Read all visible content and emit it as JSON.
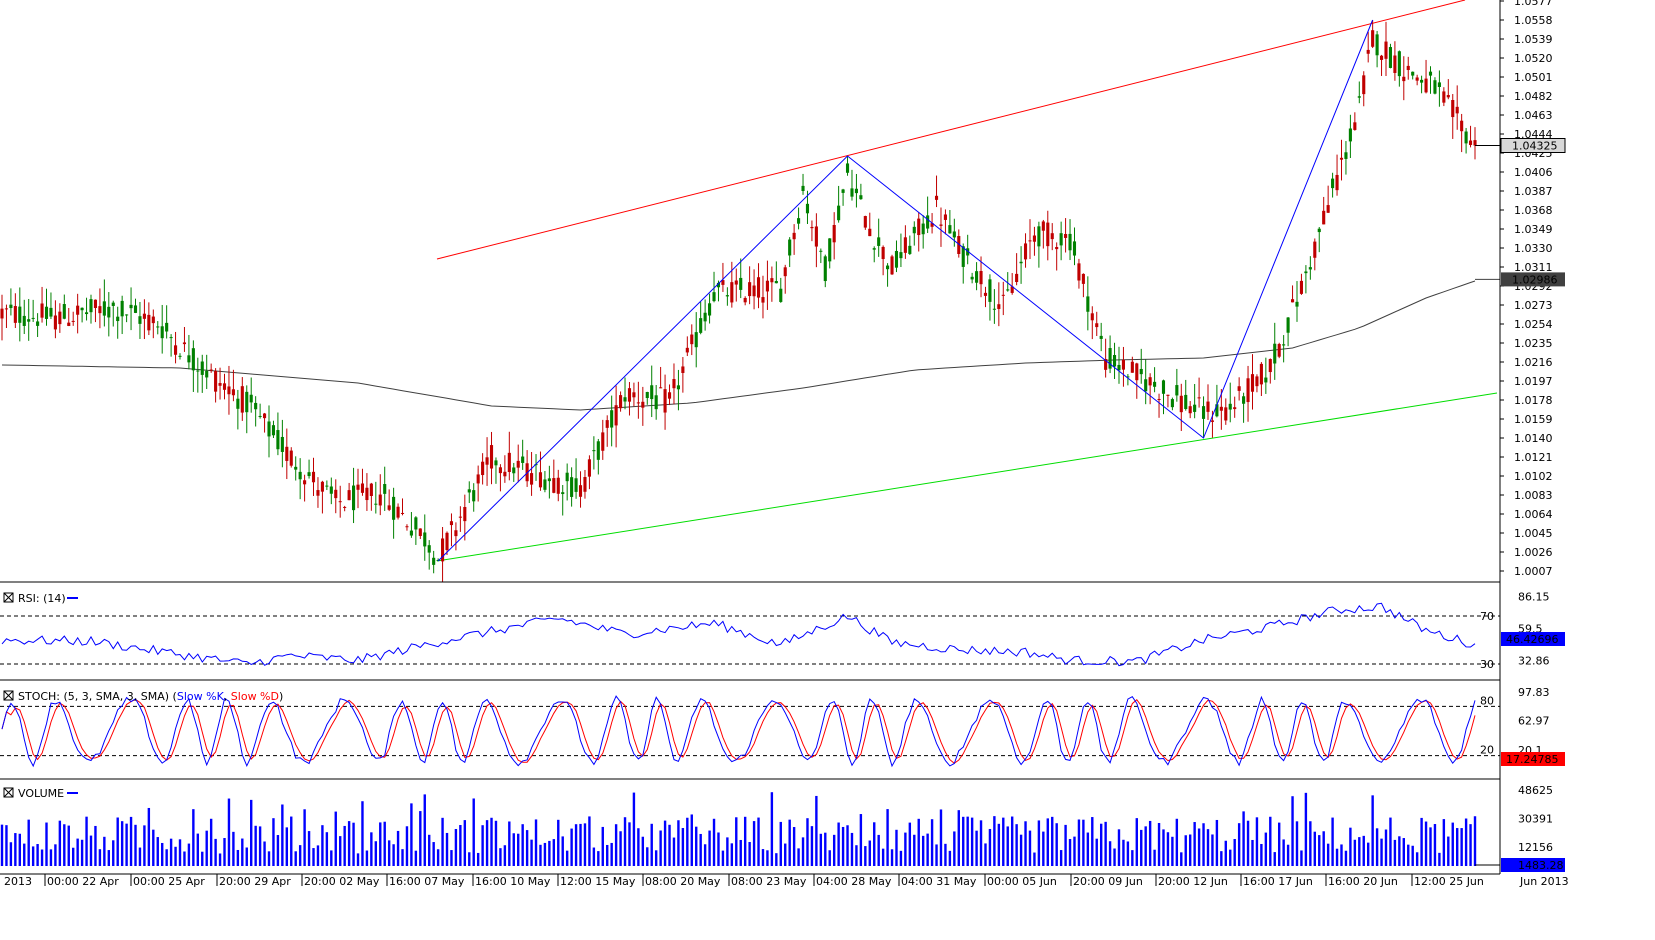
{
  "chart_data": [
    {
      "type": "candlestick",
      "panel": "price",
      "current_price_label": "1.04325",
      "ma_price_label": "1.02986",
      "colors": {
        "up": "#008000",
        "down": "#c00000",
        "ma": "#404040",
        "upper_channel": "#ff0000",
        "lower_channel": "#00dd00",
        "wave": "#0000ff",
        "axis": "#000000"
      },
      "ylim": [
        1.0007,
        1.0577
      ],
      "yticks": [
        "1.0577",
        "1.0558",
        "1.0539",
        "1.0520",
        "1.0501",
        "1.0482",
        "1.0463",
        "1.0444",
        "1.0425",
        "1.0406",
        "1.0387",
        "1.0368",
        "1.0349",
        "1.0330",
        "1.0311",
        "1.0292",
        "1.0273",
        "1.0254",
        "1.0235",
        "1.0216",
        "1.0197",
        "1.0178",
        "1.0159",
        "1.0140",
        "1.0121",
        "1.0102",
        "1.0083",
        "1.0064",
        "1.0045",
        "1.0026",
        "1.0007"
      ],
      "key_points": [
        {
          "label": "low 07 May",
          "x_index": 98,
          "price": 1.0017
        },
        {
          "label": "high 28 May",
          "x_index": 190,
          "price": 1.0422
        },
        {
          "label": "low 12 Jun",
          "x_index": 270,
          "price": 1.014
        },
        {
          "label": "high 21 Jun",
          "x_index": 308,
          "price": 1.0558
        },
        {
          "label": "last",
          "x_index": 331,
          "price": 1.04325
        }
      ]
    },
    {
      "type": "line",
      "panel": "rsi",
      "title": "RSI: (14)",
      "current_label": "46.42696",
      "yticks": [
        "86.15",
        "59.5",
        "32.86"
      ],
      "levels": [
        "70",
        "30"
      ],
      "ylim": [
        20,
        95
      ],
      "anchors": [
        [
          0,
          50
        ],
        [
          20,
          49
        ],
        [
          40,
          38
        ],
        [
          55,
          30
        ],
        [
          65,
          37
        ],
        [
          80,
          33
        ],
        [
          100,
          50
        ],
        [
          125,
          68
        ],
        [
          140,
          55
        ],
        [
          160,
          64
        ],
        [
          175,
          46
        ],
        [
          190,
          70
        ],
        [
          200,
          48
        ],
        [
          215,
          42
        ],
        [
          230,
          40
        ],
        [
          240,
          33
        ],
        [
          255,
          32
        ],
        [
          270,
          50
        ],
        [
          285,
          61
        ],
        [
          300,
          75
        ],
        [
          310,
          78
        ],
        [
          320,
          58
        ],
        [
          331,
          46
        ]
      ]
    },
    {
      "type": "line",
      "panel": "stoch",
      "title": "STOCH: (5, 3, SMA, 3, SMA)",
      "series": [
        {
          "name": "Slow %K",
          "color": "#0000ff"
        },
        {
          "name": "Slow %D",
          "color": "#ff0000"
        }
      ],
      "current_label": "17.24785",
      "yticks": [
        "97.83",
        "62.97"
      ],
      "levels": [
        "80",
        "20"
      ],
      "ylim": [
        0,
        100
      ],
      "overlap_label": "20.1"
    },
    {
      "type": "bar",
      "panel": "volume",
      "title": "VOLUME",
      "current_label": "1483.28",
      "yticks": [
        "48625",
        "30391",
        "12156"
      ],
      "ylim": [
        0,
        55000
      ],
      "color": "#0000ff"
    }
  ],
  "xaxis": {
    "labels": [
      "2013",
      "00:00 22 Apr",
      "00:00 25 Apr",
      "20:00 29 Apr",
      "20:00 02 May",
      "16:00 07 May",
      "16:00 10 May",
      "12:00 15 May",
      "08:00 20 May",
      "08:00 23 May",
      "04:00 28 May",
      "04:00 31 May",
      "00:00 05 Jun",
      "20:00 09 Jun",
      "20:00 12 Jun",
      "16:00 17 Jun",
      "16:00 20 Jun",
      "12:00 25 Jun",
      "Jun 2013"
    ]
  }
}
